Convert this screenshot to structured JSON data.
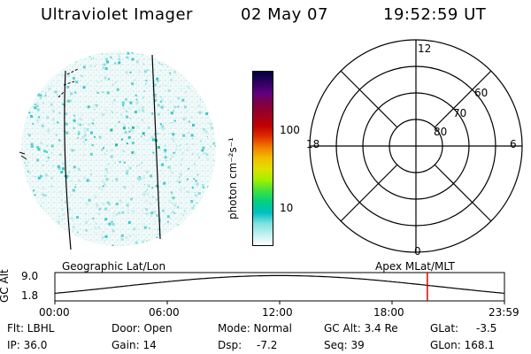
{
  "header": {
    "title": "Ultraviolet Imager",
    "date": "02 May 07",
    "time": "19:52:59 UT"
  },
  "colorbar": {
    "label": "photon cm⁻²s⁻¹",
    "ticks": [
      "100",
      "10"
    ],
    "colors": [
      "#000040",
      "#300060",
      "#600080",
      "#800040",
      "#a00020",
      "#c00000",
      "#e03000",
      "#f08000",
      "#f0c000",
      "#e0e000",
      "#a0f000",
      "#40e040",
      "#00d080",
      "#00c0c0",
      "#80e0e0",
      "#c0f0f0",
      "#ffffff"
    ]
  },
  "polar_plot": {
    "mlt_labels": {
      "top": "12",
      "bottom": "0",
      "left": "18",
      "right": "6"
    },
    "lat_labels": [
      "60",
      "70",
      "80"
    ]
  },
  "timeline": {
    "left_title": "Geographic Lat/Lon",
    "right_title": "Apex MLat/MLT",
    "y_axis_label": "GC Alt",
    "y_ticks": [
      "9.0",
      "1.8"
    ],
    "x_ticks": [
      "00:00",
      "06:00",
      "12:00",
      "18:00",
      "23:59"
    ],
    "current_time_fraction": 0.8285,
    "marker_color": "#dd0000"
  },
  "status": {
    "filter": "Flt: LBHL",
    "ip": "IP: 36.0",
    "door": "Door: Open",
    "gain": "Gain: 14",
    "mode": "Mode: Normal",
    "dsp": "Dsp:",
    "dsp_value": "-7.2",
    "gc_alt": "GC Alt: 3.4 Re",
    "seq": "Seq: 39",
    "glat": "GLat:",
    "glat_value": "-3.5",
    "glon": "GLon: 168.1"
  }
}
